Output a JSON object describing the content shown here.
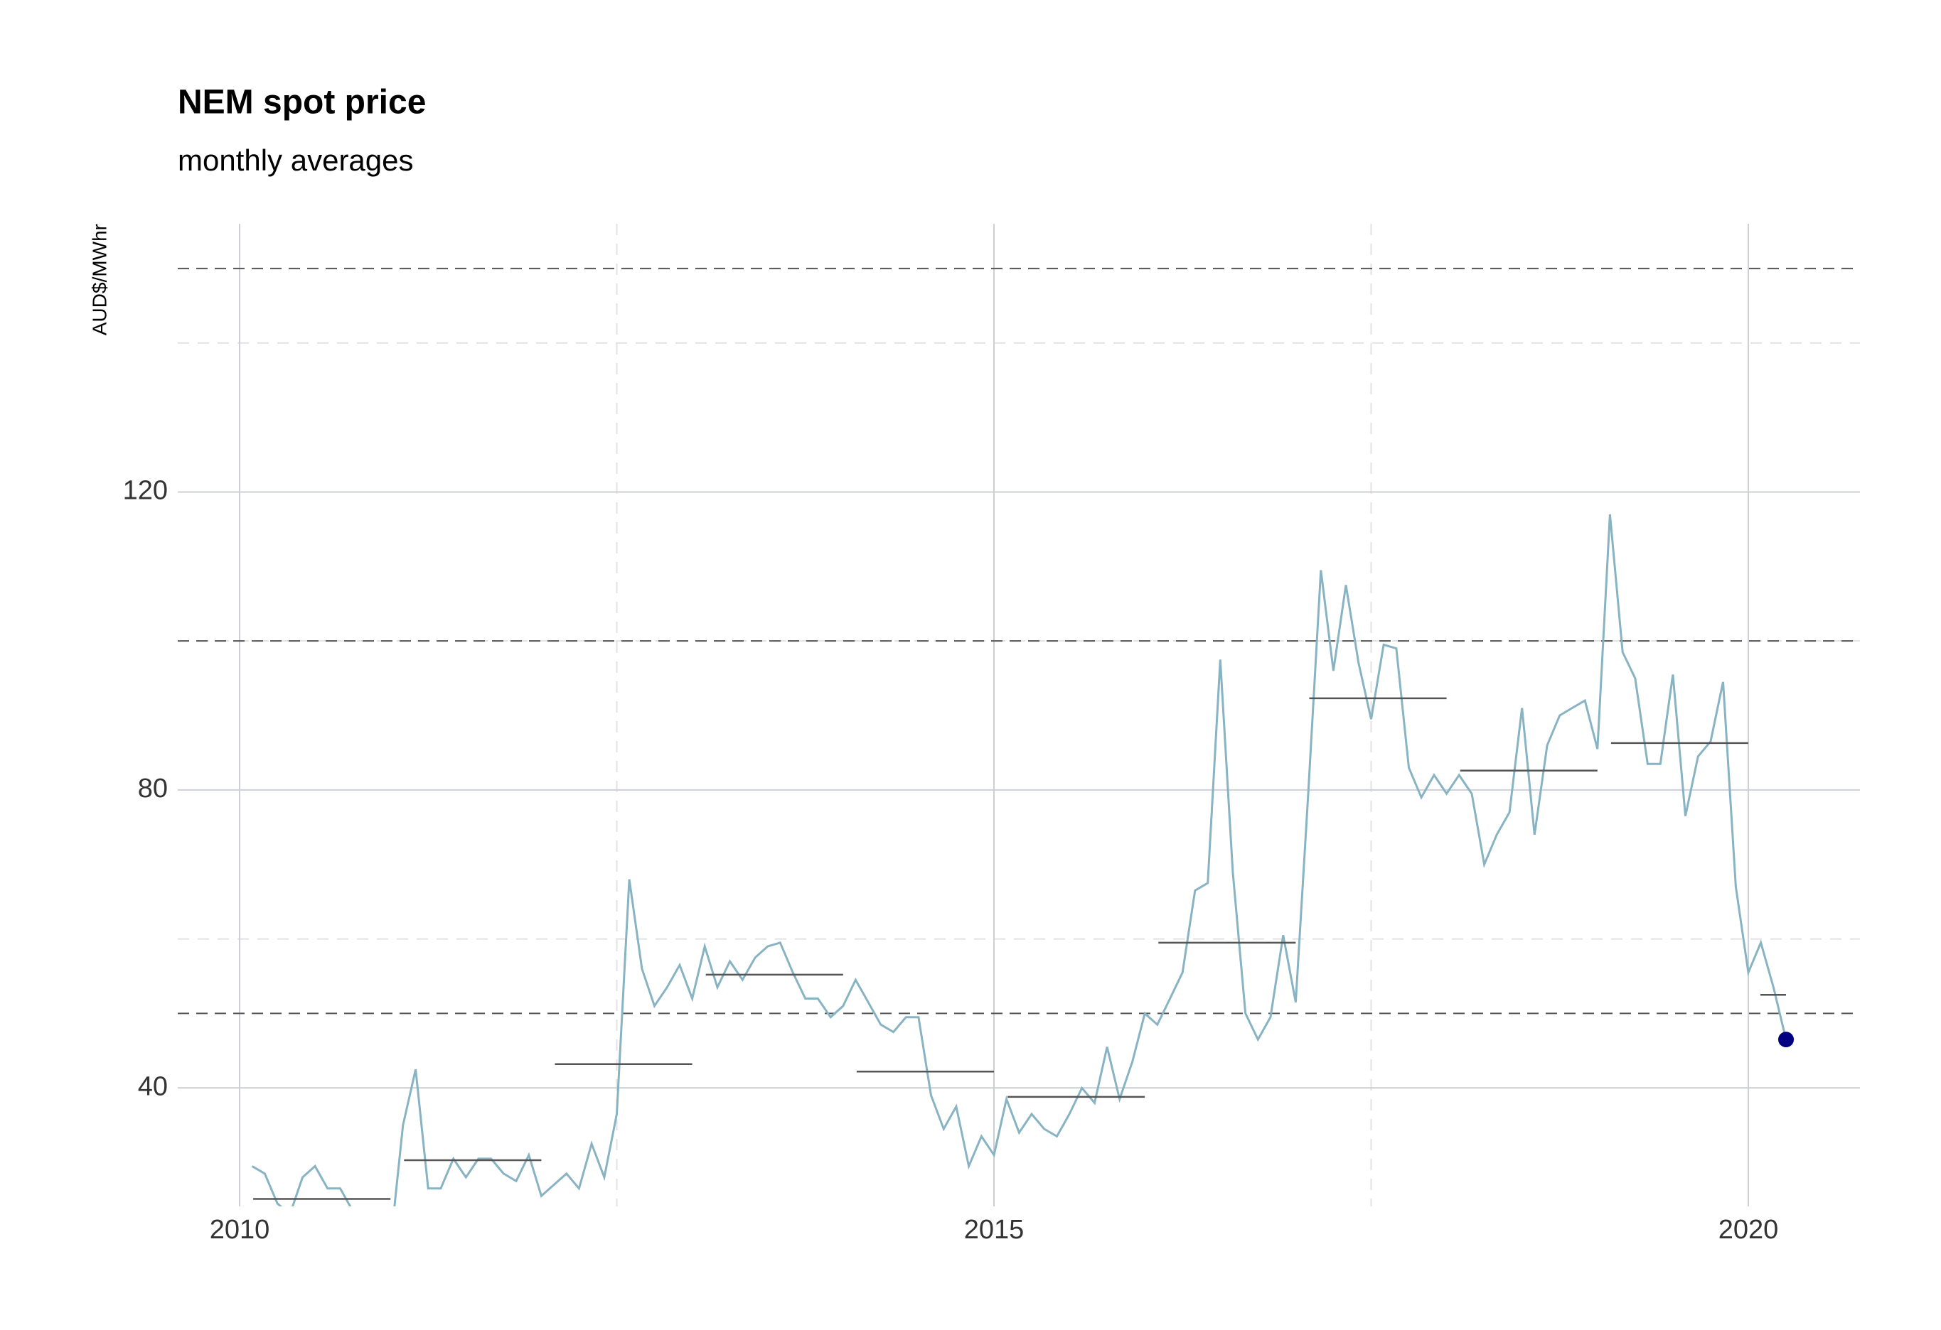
{
  "chart_data": {
    "type": "line",
    "title": "NEM spot price",
    "subtitle": "monthly averages",
    "y_label": "AUD$/MWhr",
    "xlim": [
      2009.59,
      2020.74
    ],
    "ylim": [
      24.1,
      156
    ],
    "xticks": [
      2010,
      2015,
      2020
    ],
    "minor_xticks": [
      2012.5,
      2017.5
    ],
    "yticks": [
      40,
      80,
      120
    ],
    "minor_yticks": [
      60,
      100,
      140
    ],
    "grid": true,
    "color": "#87b3c3",
    "x": [
      2010.083,
      2010.167,
      2010.25,
      2010.333,
      2010.417,
      2010.5,
      2010.583,
      2010.667,
      2010.75,
      2010.833,
      2010.917,
      2011,
      2011.083,
      2011.167,
      2011.25,
      2011.333,
      2011.417,
      2011.5,
      2011.583,
      2011.667,
      2011.75,
      2011.833,
      2011.917,
      2012,
      2012.083,
      2012.167,
      2012.25,
      2012.333,
      2012.417,
      2012.5,
      2012.583,
      2012.667,
      2012.75,
      2012.833,
      2012.917,
      2013,
      2013.083,
      2013.167,
      2013.25,
      2013.333,
      2013.417,
      2013.5,
      2013.583,
      2013.667,
      2013.75,
      2013.833,
      2013.917,
      2014,
      2014.083,
      2014.167,
      2014.25,
      2014.333,
      2014.417,
      2014.5,
      2014.583,
      2014.667,
      2014.75,
      2014.833,
      2014.917,
      2015,
      2015.083,
      2015.167,
      2015.25,
      2015.333,
      2015.417,
      2015.5,
      2015.583,
      2015.667,
      2015.75,
      2015.833,
      2015.917,
      2016,
      2016.083,
      2016.167,
      2016.25,
      2016.333,
      2016.417,
      2016.5,
      2016.583,
      2016.667,
      2016.75,
      2016.833,
      2016.917,
      2017,
      2017.083,
      2017.167,
      2017.25,
      2017.333,
      2017.417,
      2017.5,
      2017.583,
      2017.667,
      2017.75,
      2017.833,
      2017.917,
      2018,
      2018.083,
      2018.167,
      2018.25,
      2018.333,
      2018.417,
      2018.5,
      2018.583,
      2018.667,
      2018.75,
      2018.833,
      2018.917,
      2019,
      2019.083,
      2019.167,
      2019.25,
      2019.333,
      2019.417,
      2019.5,
      2019.583,
      2019.667,
      2019.75,
      2019.833,
      2019.917,
      2020,
      2020.083,
      2020.167,
      2020.25
    ],
    "values": [
      29.5,
      28.5,
      24.5,
      23,
      28,
      29.5,
      26.5,
      26.5,
      23.5,
      21,
      20,
      19,
      35,
      42.5,
      26.5,
      26.5,
      30.5,
      28,
      30.5,
      30.5,
      28.5,
      27.5,
      31,
      25.5,
      27,
      28.5,
      26.5,
      32.5,
      28,
      36.5,
      68,
      56,
      51,
      53.5,
      56.5,
      52,
      59,
      53.5,
      57,
      54.5,
      57.5,
      59,
      59.5,
      55.5,
      52,
      52,
      49.5,
      51,
      54.5,
      51.5,
      48.5,
      47.5,
      49.5,
      49.5,
      39,
      34.5,
      37.5,
      29.5,
      33.5,
      31,
      38.5,
      34,
      36.5,
      34.5,
      33.5,
      36.5,
      40,
      38,
      45.5,
      38.5,
      43.5,
      50,
      48.5,
      52,
      55.5,
      66.5,
      67.5,
      97.5,
      69,
      50,
      46.5,
      49.5,
      60.5,
      51.5,
      79.5,
      109.5,
      96,
      107.5,
      97,
      89.5,
      99.5,
      99,
      83,
      79,
      82,
      79.5,
      82,
      79.5,
      70,
      74,
      77,
      91,
      74,
      86,
      90,
      91,
      92,
      85.5,
      117,
      98.5,
      95,
      83.5,
      83.5,
      95.5,
      76.5,
      84.5,
      86.5,
      94.5,
      67,
      55.5,
      59.5,
      53.5,
      46.5
    ],
    "highlight_color": "#000080",
    "annual": {
      "color": "#555555",
      "x_start": [
        2010.09,
        2011.09,
        2012.09,
        2013.09,
        2014.09,
        2015.09,
        2016.09,
        2017.09,
        2018.09,
        2019.09,
        2020.08
      ],
      "x_end": [
        2011,
        2012,
        2013,
        2014,
        2015,
        2016,
        2017,
        2018,
        2019,
        2020,
        2020.25
      ],
      "values": [
        25.1,
        30.3,
        43.2,
        55.2,
        42.2,
        38.8,
        59.5,
        92.3,
        82.6,
        86.3,
        52.5
      ]
    },
    "reference_lines": {
      "color": "#555555",
      "values": [
        50,
        100,
        150
      ]
    }
  }
}
